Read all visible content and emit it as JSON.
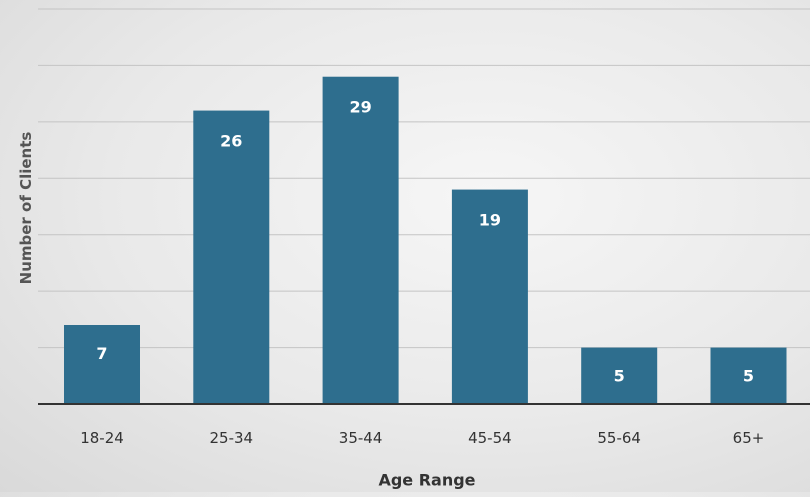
{
  "chart_data": {
    "type": "bar",
    "categories": [
      "18-24",
      "25-34",
      "35-44",
      "45-54",
      "55-64",
      "65+"
    ],
    "values": [
      7,
      26,
      29,
      19,
      5,
      5
    ],
    "xlabel": "Age Range",
    "ylabel": "Number of Clients",
    "ylim": [
      0,
      35
    ],
    "grid": true,
    "bar_color": "#2e6e8e",
    "data_labels": true
  }
}
